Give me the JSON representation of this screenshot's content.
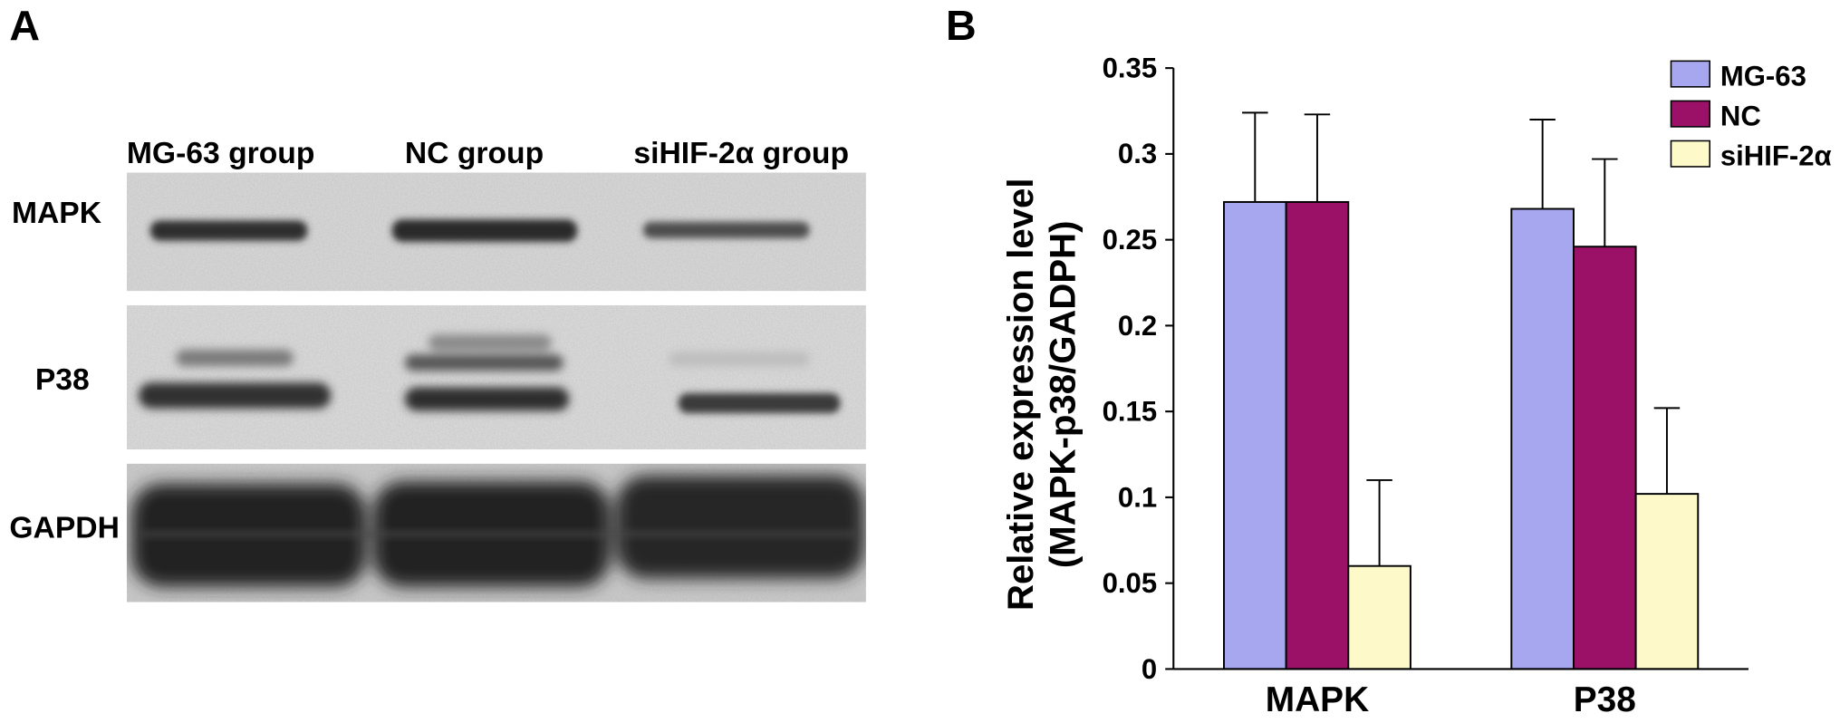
{
  "panel_a": {
    "label": "A",
    "lanes": [
      "MG-63 group",
      "NC group",
      "siHIF-2α group"
    ],
    "rows": [
      "MAPK",
      "P38",
      "GAPDH"
    ]
  },
  "panel_b": {
    "label": "B"
  },
  "chart_data": {
    "type": "bar",
    "categories": [
      "MAPK",
      "P38"
    ],
    "series": [
      {
        "name": "MG-63",
        "values": [
          0.272,
          0.268
        ],
        "error": [
          0.052,
          0.052
        ],
        "color": "#a7a7ef"
      },
      {
        "name": "NC",
        "values": [
          0.272,
          0.246
        ],
        "error": [
          0.051,
          0.051
        ],
        "color": "#9a1167"
      },
      {
        "name": "siHIF-2α",
        "values": [
          0.06,
          0.102
        ],
        "error": [
          0.05,
          0.05
        ],
        "color": "#fdf9c8"
      }
    ],
    "ylabel": [
      "Relative expression level",
      "(MAPK-p38/GADPH)"
    ],
    "ylim": [
      0,
      0.35
    ],
    "yticks": [
      "0",
      "0.05",
      "0.1",
      "0.15",
      "0.2",
      "0.25",
      "0.3",
      "0.35"
    ],
    "grid": false,
    "legend": "top-right"
  }
}
